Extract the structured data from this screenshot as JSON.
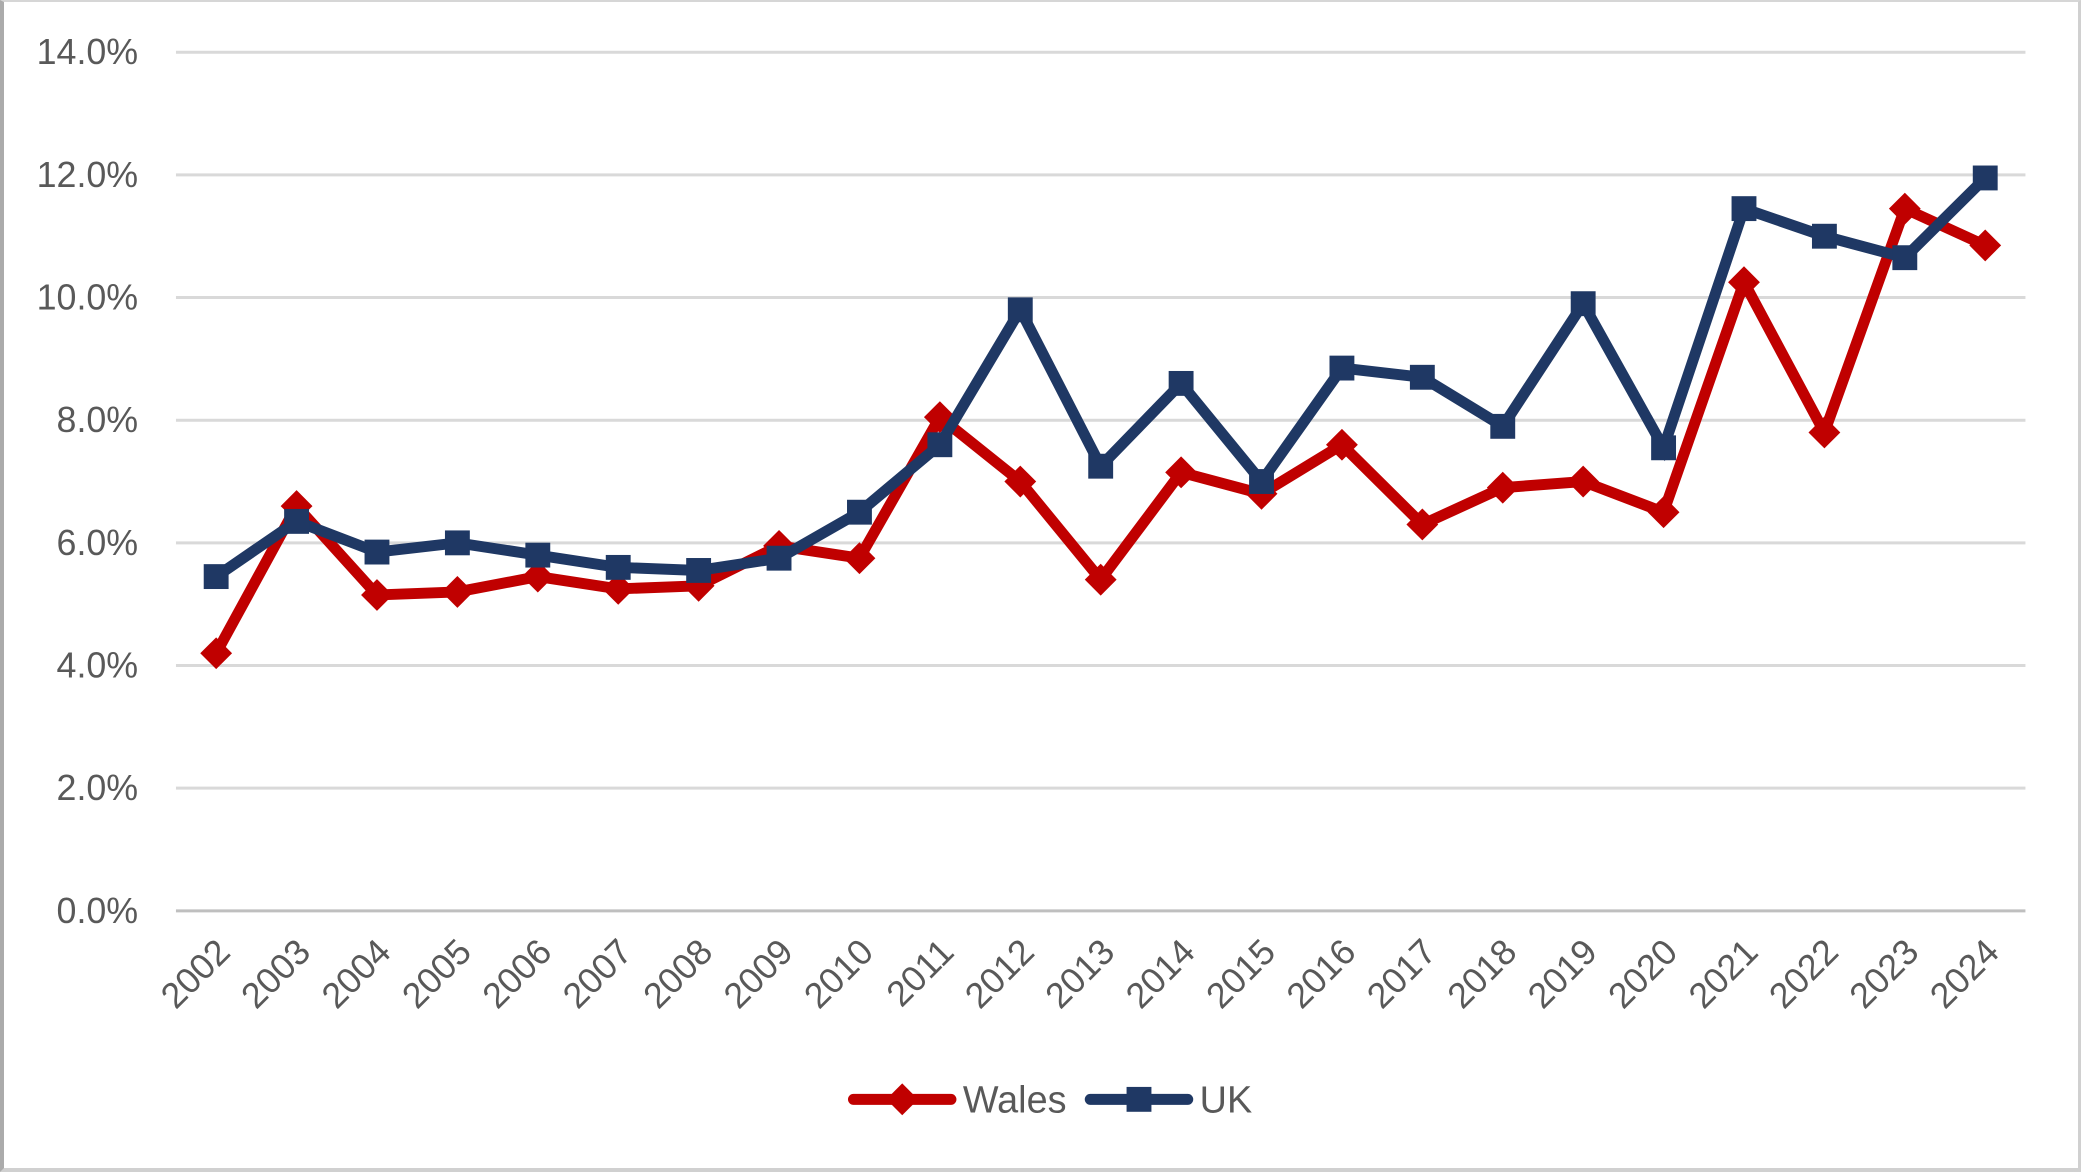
{
  "chart_data": {
    "type": "line",
    "title": "",
    "categories": [
      "2002",
      "2003",
      "2004",
      "2005",
      "2006",
      "2007",
      "2008",
      "2009",
      "2010",
      "2011",
      "2012",
      "2013",
      "2014",
      "2015",
      "2016",
      "2017",
      "2018",
      "2019",
      "2020",
      "2021",
      "2022",
      "2023",
      "2024"
    ],
    "series": [
      {
        "name": "Wales",
        "color": "#C00000",
        "marker": "diamond",
        "values": [
          4.2,
          6.6,
          5.15,
          5.2,
          5.45,
          5.25,
          5.3,
          5.95,
          5.75,
          8.05,
          7.0,
          5.4,
          7.15,
          6.8,
          7.6,
          6.3,
          6.9,
          7.0,
          6.5,
          10.25,
          7.8,
          11.45,
          10.85
        ]
      },
      {
        "name": "UK",
        "color": "#1F3864",
        "marker": "square",
        "values": [
          5.45,
          6.35,
          5.85,
          6.0,
          5.8,
          5.6,
          5.55,
          5.75,
          6.5,
          7.6,
          9.8,
          7.25,
          8.6,
          7.0,
          8.85,
          8.7,
          7.9,
          9.9,
          7.55,
          11.45,
          11.0,
          10.65,
          11.95
        ]
      }
    ],
    "y_axis": {
      "min": 0,
      "max": 14,
      "step": 2,
      "tick_labels": [
        "0.0%",
        "2.0%",
        "4.0%",
        "6.0%",
        "8.0%",
        "10.0%",
        "12.0%",
        "14.0%"
      ]
    },
    "x_axis": {
      "label": ""
    },
    "legend": {
      "position": "bottom",
      "entries": [
        "Wales",
        "UK"
      ]
    },
    "grid": true
  },
  "colors": {
    "gridline": "#D9D9D9",
    "axis_line": "#BFBFBF",
    "tick_text": "#595959",
    "background": "#FFFFFF"
  }
}
